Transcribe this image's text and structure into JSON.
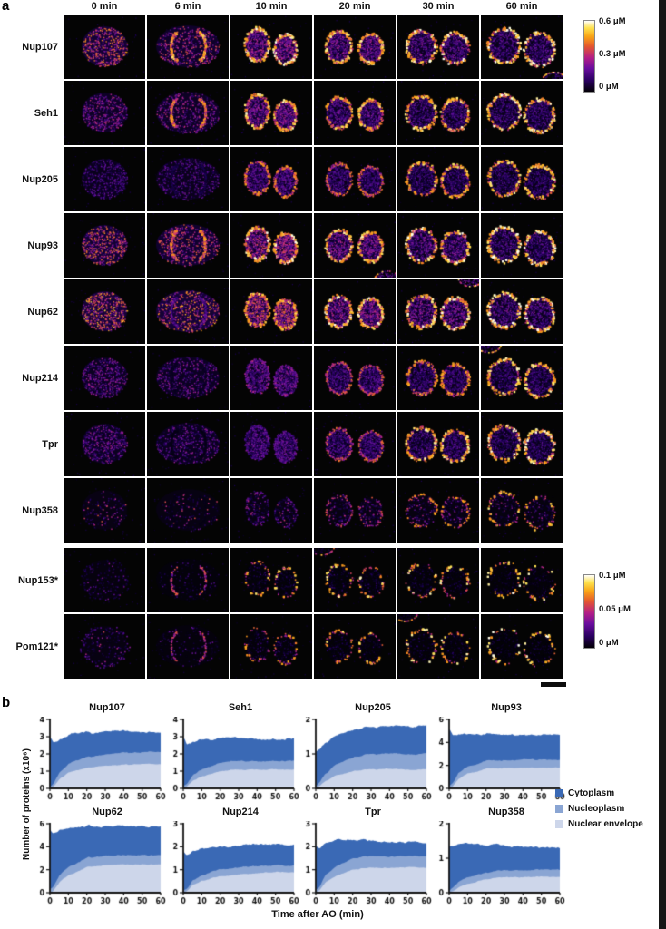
{
  "figure": {
    "panel_a_label": "a",
    "panel_b_label": "b"
  },
  "panel_a": {
    "time_labels": [
      "0 min",
      "6 min",
      "10 min",
      "20 min",
      "30 min",
      "60 min"
    ],
    "rows": [
      {
        "label": "Nup107",
        "sparse": false,
        "interior": [
          0.62,
          0.5,
          0.42,
          0.38,
          0.34,
          0.3
        ],
        "rim": [
          0,
          0.85,
          0.95,
          0.9,
          0.95,
          1.0
        ]
      },
      {
        "label": "Seh1",
        "sparse": false,
        "interior": [
          0.42,
          0.42,
          0.4,
          0.33,
          0.3,
          0.28
        ],
        "rim": [
          0,
          0.75,
          0.9,
          0.85,
          0.9,
          0.95
        ]
      },
      {
        "label": "Nup205",
        "sparse": false,
        "interior": [
          0.3,
          0.32,
          0.32,
          0.28,
          0.26,
          0.25
        ],
        "rim": [
          0,
          0.15,
          0.75,
          0.7,
          0.85,
          0.9
        ]
      },
      {
        "label": "Nup93",
        "sparse": false,
        "interior": [
          0.6,
          0.55,
          0.48,
          0.4,
          0.35,
          0.3
        ],
        "rim": [
          0,
          0.75,
          0.95,
          0.9,
          0.95,
          1.0
        ]
      },
      {
        "label": "Nup62",
        "sparse": false,
        "interior": [
          0.68,
          0.65,
          0.55,
          0.42,
          0.38,
          0.33
        ],
        "rim": [
          0,
          0.35,
          0.85,
          0.95,
          0.95,
          1.0
        ]
      },
      {
        "label": "Nup214",
        "sparse": false,
        "interior": [
          0.38,
          0.38,
          0.35,
          0.3,
          0.28,
          0.26
        ],
        "rim": [
          0,
          0.08,
          0.45,
          0.65,
          0.8,
          0.9
        ]
      },
      {
        "label": "Tpr",
        "sparse": false,
        "interior": [
          0.38,
          0.35,
          0.33,
          0.3,
          0.28,
          0.26
        ],
        "rim": [
          0,
          0.05,
          0.35,
          0.65,
          0.9,
          0.95
        ]
      },
      {
        "label": "Nup358",
        "sparse": true,
        "interior": [
          0.32,
          0.3,
          0.28,
          0.28,
          0.26,
          0.24
        ],
        "rim": [
          0,
          0.05,
          0.35,
          0.55,
          0.75,
          0.85
        ]
      },
      {
        "label": "Nup153*",
        "sparse": true,
        "interior": [
          0.22,
          0.15,
          0.12,
          0.12,
          0.1,
          0.1
        ],
        "rim": [
          0.15,
          0.6,
          0.85,
          0.9,
          0.9,
          0.95
        ]
      },
      {
        "label": "Pom121*",
        "sparse": true,
        "interior": [
          0.28,
          0.18,
          0.12,
          0.1,
          0.1,
          0.08
        ],
        "rim": [
          0.35,
          0.55,
          0.75,
          0.85,
          0.9,
          0.95
        ]
      }
    ],
    "colorbars": [
      {
        "labels": [
          "0.6 μM",
          "0.3 μM",
          "0 μM"
        ]
      },
      {
        "labels": [
          "0.1 μM",
          "0.05 μM",
          "0 μM"
        ]
      }
    ]
  },
  "panel_b": {
    "ylabel": "Number of proteins (x10⁶)",
    "xlabel": "Time after AO (min)",
    "legend": [
      {
        "label": "Cytoplasm",
        "color": "#3a69b5"
      },
      {
        "label": "Nucleoplasm",
        "color": "#8aa5d3"
      },
      {
        "label": "Nuclear envelope",
        "color": "#cdd6ea"
      }
    ]
  },
  "chart_data": [
    {
      "type": "area",
      "stacked": true,
      "title": "Nup107",
      "ylim": [
        0,
        4
      ],
      "yticks": [
        0,
        1,
        2,
        3,
        4
      ],
      "xticks": [
        0,
        10,
        20,
        30,
        40,
        50,
        60
      ],
      "x": [
        0,
        2,
        5,
        10,
        20,
        30,
        40,
        50,
        60
      ],
      "series": [
        {
          "name": "Cytoplasm",
          "values": [
            2.9,
            2.4,
            1.9,
            1.7,
            1.4,
            1.3,
            1.25,
            1.2,
            1.1
          ]
        },
        {
          "name": "Nucleoplasm",
          "values": [
            0.1,
            0.2,
            0.4,
            0.5,
            0.6,
            0.65,
            0.7,
            0.7,
            0.7
          ]
        },
        {
          "name": "Nuclear envelope",
          "values": [
            0,
            0.1,
            0.5,
            0.9,
            1.2,
            1.3,
            1.35,
            1.4,
            1.4
          ]
        }
      ]
    },
    {
      "type": "area",
      "stacked": true,
      "title": "Seh1",
      "ylim": [
        0,
        4
      ],
      "yticks": [
        0,
        1,
        2,
        3,
        4
      ],
      "xticks": [
        0,
        10,
        20,
        30,
        40,
        50,
        60
      ],
      "x": [
        0,
        2,
        5,
        10,
        20,
        30,
        40,
        50,
        60
      ],
      "series": [
        {
          "name": "Cytoplasm",
          "values": [
            2.9,
            2.3,
            1.9,
            1.7,
            1.4,
            1.3,
            1.3,
            1.3,
            1.3
          ]
        },
        {
          "name": "Nucleoplasm",
          "values": [
            0.1,
            0.15,
            0.3,
            0.4,
            0.5,
            0.5,
            0.5,
            0.5,
            0.5
          ]
        },
        {
          "name": "Nuclear envelope",
          "values": [
            0,
            0.1,
            0.4,
            0.7,
            1.0,
            1.1,
            1.1,
            1.1,
            1.1
          ]
        }
      ]
    },
    {
      "type": "area",
      "stacked": true,
      "title": "Nup205",
      "ylim": [
        0,
        2
      ],
      "yticks": [
        0,
        1,
        2
      ],
      "xticks": [
        0,
        10,
        20,
        30,
        40,
        50,
        60
      ],
      "x": [
        0,
        2,
        5,
        10,
        20,
        30,
        40,
        50,
        60
      ],
      "series": [
        {
          "name": "Cytoplasm",
          "values": [
            1.0,
            0.95,
            0.9,
            0.85,
            0.8,
            0.8,
            0.8,
            0.8,
            0.8
          ]
        },
        {
          "name": "Nucleoplasm",
          "values": [
            0.05,
            0.1,
            0.2,
            0.3,
            0.4,
            0.45,
            0.45,
            0.45,
            0.45
          ]
        },
        {
          "name": "Nuclear envelope",
          "values": [
            0,
            0.05,
            0.2,
            0.35,
            0.5,
            0.55,
            0.55,
            0.55,
            0.55
          ]
        }
      ]
    },
    {
      "type": "area",
      "stacked": true,
      "title": "Nup93",
      "ylim": [
        0,
        6
      ],
      "yticks": [
        0,
        2,
        4,
        6
      ],
      "xticks": [
        0,
        10,
        20,
        30,
        40,
        50,
        60
      ],
      "x": [
        0,
        2,
        5,
        10,
        20,
        30,
        40,
        50,
        60
      ],
      "series": [
        {
          "name": "Cytoplasm",
          "values": [
            5.0,
            4.2,
            3.4,
            2.8,
            2.3,
            2.2,
            2.2,
            2.2,
            2.2
          ]
        },
        {
          "name": "Nucleoplasm",
          "values": [
            0.2,
            0.3,
            0.5,
            0.6,
            0.7,
            0.7,
            0.7,
            0.7,
            0.7
          ]
        },
        {
          "name": "Nuclear envelope",
          "values": [
            0,
            0.2,
            0.8,
            1.3,
            1.7,
            1.8,
            1.8,
            1.8,
            1.8
          ]
        }
      ]
    },
    {
      "type": "area",
      "stacked": true,
      "title": "Nup62",
      "ylim": [
        0,
        6
      ],
      "yticks": [
        0,
        2,
        4,
        6
      ],
      "xticks": [
        0,
        10,
        20,
        30,
        40,
        50,
        60
      ],
      "x": [
        0,
        2,
        5,
        10,
        20,
        30,
        40,
        50,
        60
      ],
      "series": [
        {
          "name": "Cytoplasm",
          "values": [
            5.2,
            4.6,
            4.0,
            3.4,
            2.8,
            2.6,
            2.5,
            2.5,
            2.5
          ]
        },
        {
          "name": "Nucleoplasm",
          "values": [
            0.3,
            0.4,
            0.6,
            0.7,
            0.8,
            0.8,
            0.8,
            0.8,
            0.8
          ]
        },
        {
          "name": "Nuclear envelope",
          "values": [
            0,
            0.2,
            0.9,
            1.5,
            2.2,
            2.4,
            2.5,
            2.5,
            2.5
          ]
        }
      ]
    },
    {
      "type": "area",
      "stacked": true,
      "title": "Nup214",
      "ylim": [
        0,
        3
      ],
      "yticks": [
        0,
        1,
        2,
        3
      ],
      "xticks": [
        0,
        10,
        20,
        30,
        40,
        50,
        60
      ],
      "x": [
        0,
        2,
        5,
        10,
        20,
        30,
        40,
        50,
        60
      ],
      "series": [
        {
          "name": "Cytoplasm",
          "values": [
            1.7,
            1.5,
            1.3,
            1.2,
            1.0,
            0.95,
            0.95,
            0.9,
            0.9
          ]
        },
        {
          "name": "Nucleoplasm",
          "values": [
            0.1,
            0.1,
            0.2,
            0.25,
            0.3,
            0.3,
            0.3,
            0.3,
            0.3
          ]
        },
        {
          "name": "Nuclear envelope",
          "values": [
            0,
            0.05,
            0.3,
            0.5,
            0.7,
            0.8,
            0.85,
            0.9,
            0.9
          ]
        }
      ]
    },
    {
      "type": "area",
      "stacked": true,
      "title": "Tpr",
      "ylim": [
        0,
        3
      ],
      "yticks": [
        0,
        1,
        2,
        3
      ],
      "xticks": [
        0,
        10,
        20,
        30,
        40,
        50,
        60
      ],
      "x": [
        0,
        2,
        5,
        10,
        20,
        30,
        40,
        50,
        60
      ],
      "series": [
        {
          "name": "Cytoplasm",
          "values": [
            1.9,
            1.7,
            1.4,
            1.2,
            0.8,
            0.65,
            0.6,
            0.6,
            0.6
          ]
        },
        {
          "name": "Nucleoplasm",
          "values": [
            0.1,
            0.15,
            0.3,
            0.4,
            0.5,
            0.5,
            0.5,
            0.5,
            0.5
          ]
        },
        {
          "name": "Nuclear envelope",
          "values": [
            0,
            0.1,
            0.4,
            0.7,
            1.0,
            1.1,
            1.1,
            1.1,
            1.1
          ]
        }
      ]
    },
    {
      "type": "area",
      "stacked": true,
      "title": "Nup358",
      "ylim": [
        0,
        2
      ],
      "yticks": [
        0,
        1,
        2
      ],
      "xticks": [
        0,
        10,
        20,
        30,
        40,
        50,
        60
      ],
      "x": [
        0,
        2,
        5,
        10,
        20,
        30,
        40,
        50,
        60
      ],
      "series": [
        {
          "name": "Cytoplasm",
          "values": [
            1.3,
            1.2,
            1.1,
            1.0,
            0.8,
            0.7,
            0.68,
            0.65,
            0.65
          ]
        },
        {
          "name": "Nucleoplasm",
          "values": [
            0.05,
            0.1,
            0.15,
            0.2,
            0.2,
            0.2,
            0.2,
            0.2,
            0.2
          ]
        },
        {
          "name": "Nuclear envelope",
          "values": [
            0,
            0.05,
            0.15,
            0.25,
            0.4,
            0.45,
            0.45,
            0.45,
            0.45
          ]
        }
      ]
    }
  ]
}
